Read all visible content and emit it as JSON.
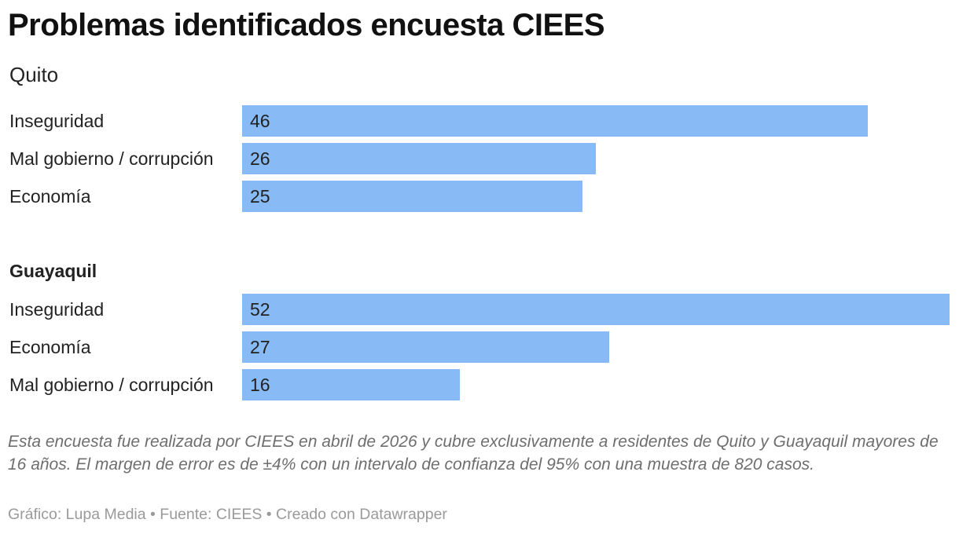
{
  "title": "Problemas identificados encuesta CIEES",
  "notes": "Esta encuesta fue realizada por CIEES en abril de 2026 y cubre exclusivamente a residentes de Quito y Guayaquil mayores de 16 años. El margen de error es de ±4% con un intervalo de confianza del 95% con una muestra de 820 casos.",
  "footer": {
    "credit": "Gráfico: Lupa Media",
    "separator": " • ",
    "source": "Fuente: CIEES",
    "created": "Creado con Datawrapper"
  },
  "colors": {
    "bar": "#88bbf6"
  },
  "chart_data": {
    "type": "bar",
    "orientation": "horizontal",
    "xlim": [
      0,
      52
    ],
    "groups": [
      {
        "name": "Quito",
        "categories": [
          "Inseguridad",
          "Mal gobierno / corrupción",
          "Economía"
        ],
        "values": [
          46,
          26,
          25
        ]
      },
      {
        "name": "Guayaquil",
        "categories": [
          "Inseguridad",
          "Economía",
          "Mal gobierno / corrupción"
        ],
        "values": [
          52,
          27,
          16
        ]
      }
    ]
  }
}
